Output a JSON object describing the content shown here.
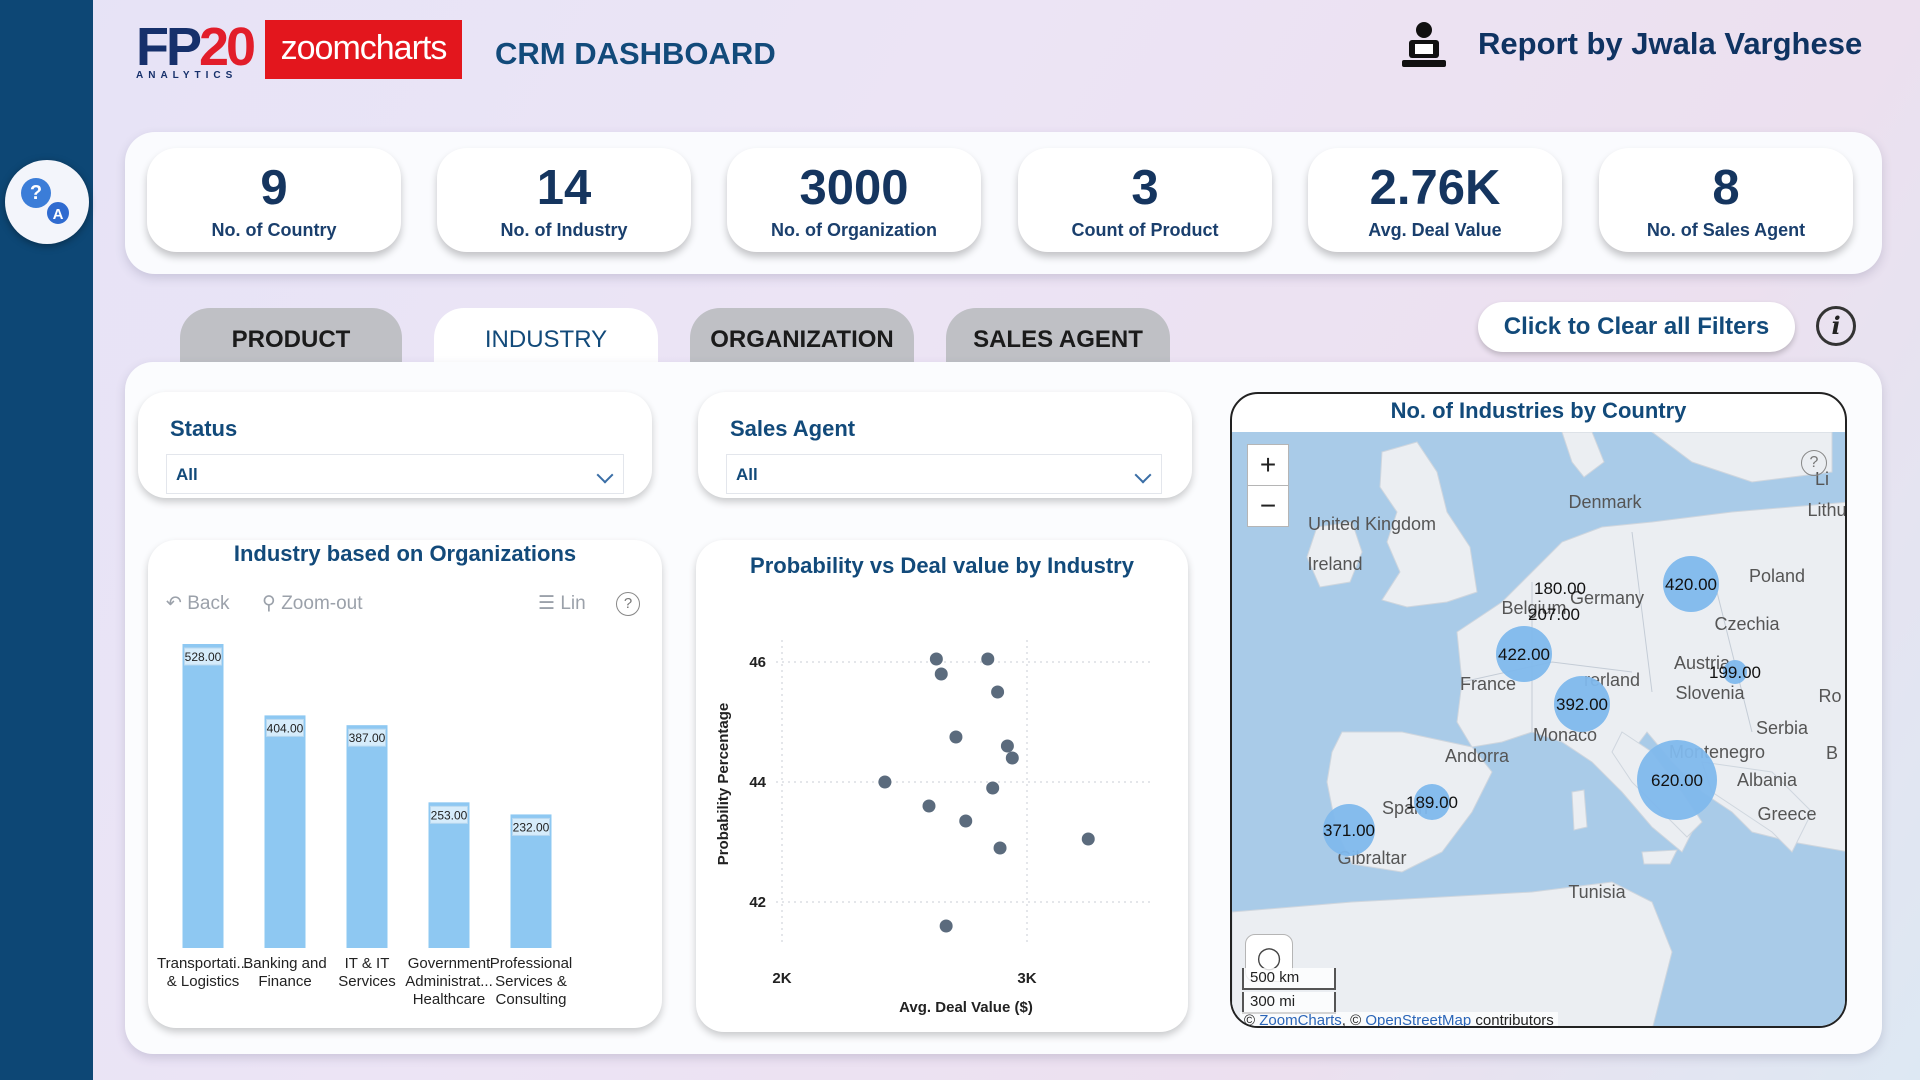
{
  "header": {
    "logo_fp": "FP",
    "logo_num": "20",
    "logo_sub": "ANALYTICS",
    "logo_zoomcharts": "zoomcharts",
    "title": "CRM DASHBOARD",
    "report_by": "Report by Jwala Varghese"
  },
  "kpis": [
    {
      "value": "9",
      "label": "No. of Country"
    },
    {
      "value": "14",
      "label": "No. of Industry"
    },
    {
      "value": "3000",
      "label": "No. of Organization"
    },
    {
      "value": "3",
      "label": "Count of Product"
    },
    {
      "value": "2.76K",
      "label": "Avg. Deal Value"
    },
    {
      "value": "8",
      "label": "No. of Sales Agent"
    }
  ],
  "tabs": [
    {
      "label": "PRODUCT",
      "active": false
    },
    {
      "label": "INDUSTRY",
      "active": true
    },
    {
      "label": "ORGANIZATION",
      "active": false
    },
    {
      "label": "SALES AGENT",
      "active": false
    }
  ],
  "clear_filters_label": "Click to Clear all Filters",
  "slicers": {
    "status": {
      "title": "Status",
      "value": "All"
    },
    "sales_agent": {
      "title": "Sales Agent",
      "value": "All"
    }
  },
  "bar_card": {
    "title": "Industry based on Organizations",
    "back_label": "Back",
    "zoom_out_label": "Zoom-out",
    "lin_label": "Lin"
  },
  "scatter_card": {
    "title": "Probability vs Deal value by Industry"
  },
  "map_card": {
    "title": "No. of Industries by Country",
    "scale_km": "500 km",
    "scale_mi": "300 mi",
    "attr_zoomcharts": "ZoomCharts",
    "attr_osm": "OpenStreetMap",
    "attr_suffix": "contributors",
    "attr_prefix": "©",
    "attr_sep": ", ©",
    "labels": [
      "Denmark",
      "United Kingdom",
      "Ireland",
      "Lithu",
      "Poland",
      "Germany",
      "Belgium",
      "Czechia",
      "France",
      "Austria",
      "rerland",
      "Slovenia",
      "Ro",
      "Monaco",
      "Serbia",
      "Andorra",
      "Montenegro",
      "B",
      "Albania",
      "Spain",
      "Greece",
      "Gibraltar",
      "Tunisia",
      "Li"
    ],
    "bubbles": [
      {
        "value": "180.00"
      },
      {
        "value": "420.00"
      },
      {
        "value": "207.00"
      },
      {
        "value": "422.00"
      },
      {
        "value": "199.00"
      },
      {
        "value": "392.00"
      },
      {
        "value": "620.00"
      },
      {
        "value": "189.00"
      },
      {
        "value": "371.00"
      }
    ]
  },
  "chart_data": [
    {
      "type": "bar",
      "title": "Industry based on Organizations",
      "categories": [
        [
          "Transportati...",
          "& Logistics"
        ],
        [
          "Banking and",
          "Finance"
        ],
        [
          "IT & IT",
          "Services"
        ],
        [
          "Government",
          "Administrat...",
          "Healthcare"
        ],
        [
          "Professional",
          "Services &",
          "Consulting"
        ]
      ],
      "values": [
        528,
        404,
        387,
        253,
        232
      ],
      "value_labels": [
        "528.00",
        "404.00",
        "387.00",
        "253.00",
        "232.00"
      ],
      "color": "#8ec8f2"
    },
    {
      "type": "scatter",
      "title": "Probability vs Deal value by Industry",
      "xlabel": "Avg. Deal Value ($)",
      "ylabel": "Probability Percentage",
      "xticks": [
        "2K",
        "3K"
      ],
      "yticks": [
        "42",
        "44",
        "46"
      ],
      "points": [
        {
          "x": 2630,
          "y": 46.05
        },
        {
          "x": 2840,
          "y": 46.05
        },
        {
          "x": 2650,
          "y": 45.8
        },
        {
          "x": 2880,
          "y": 45.5
        },
        {
          "x": 2710,
          "y": 44.75
        },
        {
          "x": 2920,
          "y": 44.6
        },
        {
          "x": 2940,
          "y": 44.4
        },
        {
          "x": 2420,
          "y": 44.0
        },
        {
          "x": 2860,
          "y": 43.9
        },
        {
          "x": 2600,
          "y": 43.6
        },
        {
          "x": 2750,
          "y": 43.35
        },
        {
          "x": 3250,
          "y": 43.05
        },
        {
          "x": 2890,
          "y": 42.9
        },
        {
          "x": 2670,
          "y": 41.6
        }
      ],
      "color": "#5b6b7d"
    }
  ]
}
